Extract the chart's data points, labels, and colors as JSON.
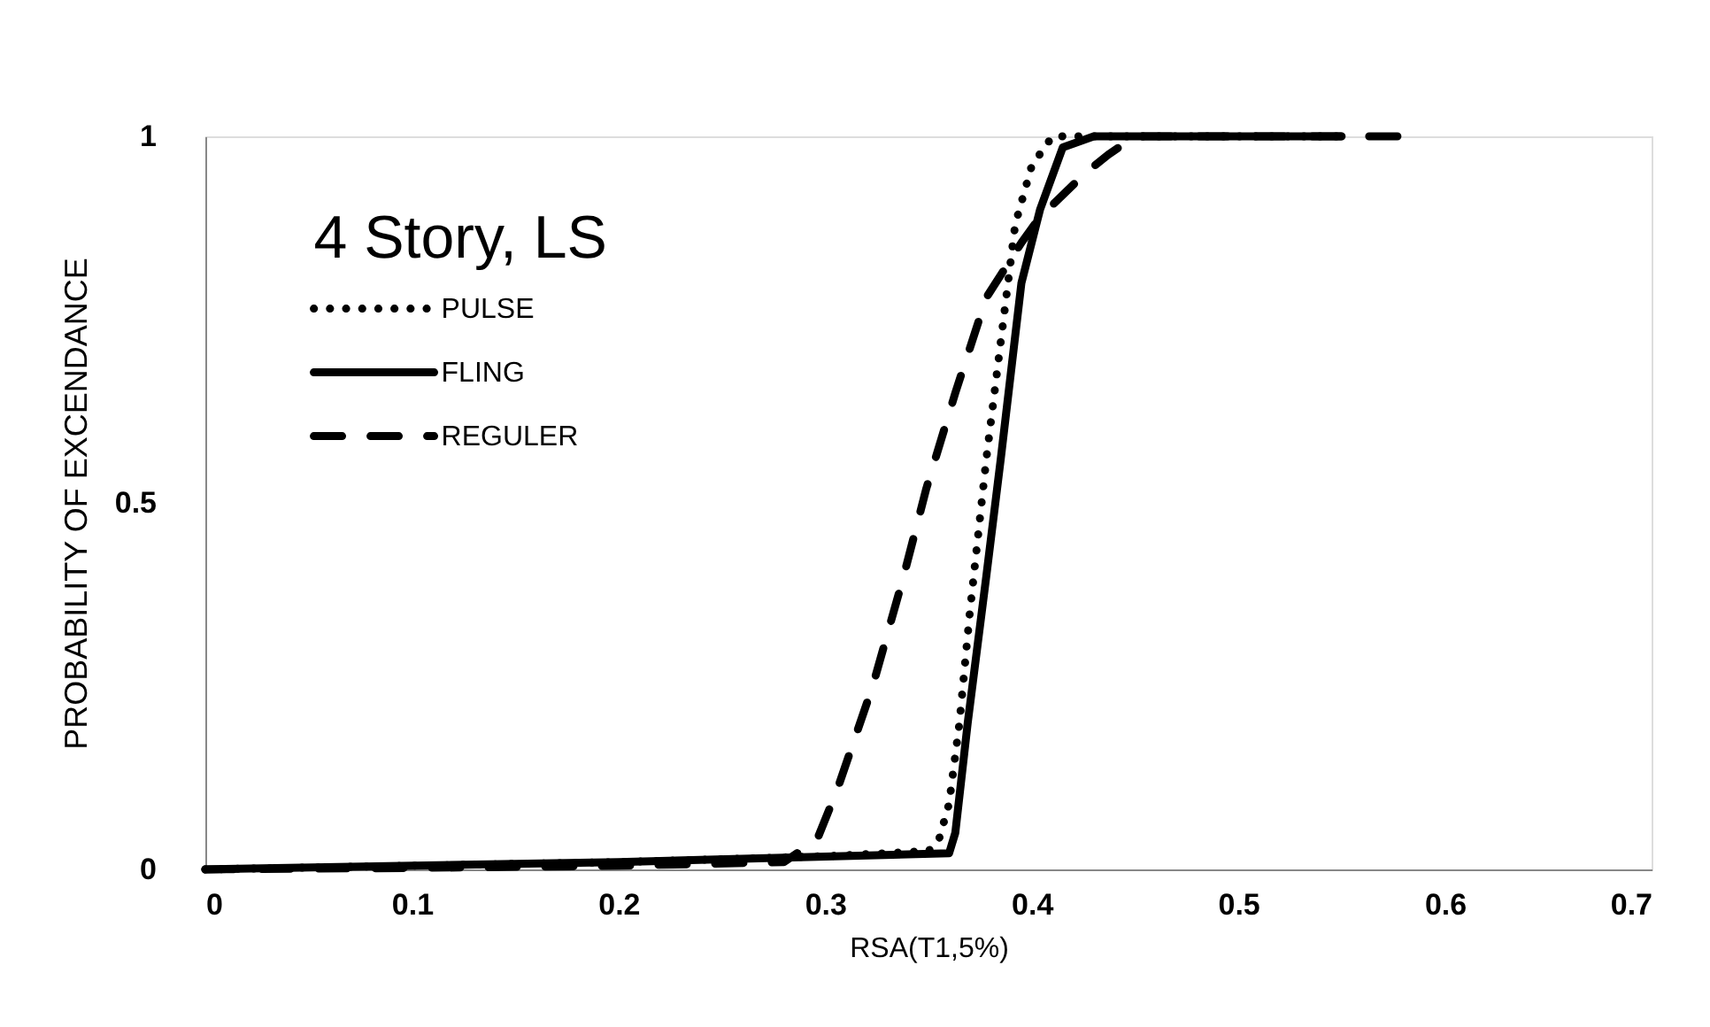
{
  "chart_data": {
    "type": "line",
    "xlabel": "RSA(T1,5%)",
    "ylabel": "PROBABILITY OF EXCENDANCE",
    "annotations": [
      "4 Story, LS"
    ],
    "xlim": [
      0,
      0.7
    ],
    "xticks": [
      0,
      0.1,
      0.2,
      0.3,
      0.4,
      0.5,
      0.6,
      0.7
    ],
    "ylim": [
      0,
      1
    ],
    "yticks": [
      0,
      0.5,
      1
    ],
    "grid": false,
    "legend": "top left",
    "marker": "none",
    "series": [
      {
        "name": "PULSE",
        "color": "#000000",
        "line_style": "dotted",
        "x": [
          0,
          0.1,
          0.2,
          0.3,
          0.35,
          0.355,
          0.36,
          0.365,
          0.37,
          0.378,
          0.385,
          0.392,
          0.4,
          0.41,
          0.55
        ],
        "values": [
          0,
          0.005,
          0.01,
          0.018,
          0.025,
          0.04,
          0.09,
          0.2,
          0.35,
          0.56,
          0.72,
          0.88,
          0.96,
          1,
          1
        ]
      },
      {
        "name": "FLING",
        "color": "#000000",
        "line_style": "solid",
        "x": [
          0,
          0.2,
          0.36,
          0.363,
          0.369,
          0.378,
          0.385,
          0.395,
          0.404,
          0.415,
          0.43,
          0.55
        ],
        "values": [
          0,
          0.01,
          0.022,
          0.05,
          0.2,
          0.4,
          0.56,
          0.8,
          0.9,
          0.985,
          1,
          1
        ]
      },
      {
        "name": "REGULER",
        "color": "#000000",
        "line_style": "dashed",
        "x": [
          0,
          0.1,
          0.2,
          0.28,
          0.296,
          0.306,
          0.323,
          0.338,
          0.349,
          0.363,
          0.378,
          0.395,
          0.404,
          0.426,
          0.437,
          0.45,
          0.58
        ],
        "values": [
          0,
          0.002,
          0.005,
          0.01,
          0.04,
          0.11,
          0.25,
          0.4,
          0.52,
          0.65,
          0.78,
          0.855,
          0.89,
          0.95,
          0.975,
          1,
          1
        ]
      }
    ]
  }
}
